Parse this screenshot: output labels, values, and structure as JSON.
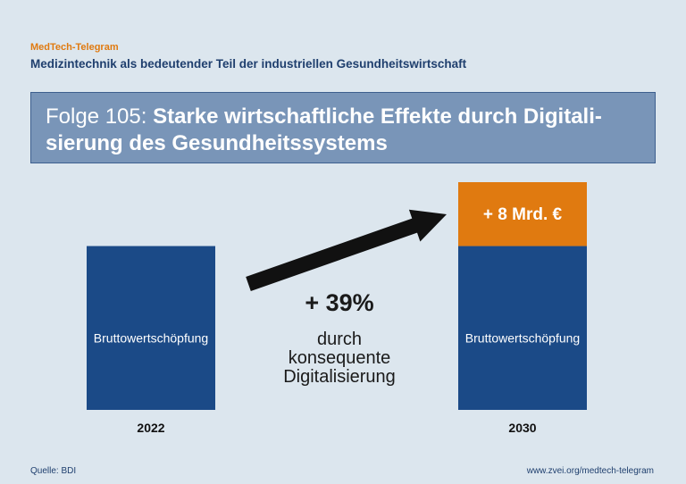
{
  "header": {
    "brand": "MedTech-Telegram",
    "subtitle": "Medizintechnik als bedeutender Teil der industriellen Gesundheitswirtschaft"
  },
  "banner": {
    "prefix": "Folge 105:",
    "title": "Starke wirtschaftliche Effekte durch Digitali-sierung des Gesundheitssystems"
  },
  "chart_data": {
    "type": "bar",
    "categories": [
      "2022",
      "2030"
    ],
    "series": [
      {
        "values": [
          100,
          100
        ]
      },
      {
        "values": [
          0,
          39
        ]
      }
    ],
    "bar_labels": [
      "Bruttowertschöpfung",
      "Bruttowertschöpfung"
    ],
    "increase_label": "+ 8 Mrd. €",
    "growth_label": "+ 39%",
    "growth_note": [
      "durch",
      "konsequente",
      "Digitalisierung"
    ],
    "ylim": [
      0,
      139
    ],
    "colors": {
      "base": "#1b4a87",
      "increase": "#e07a10",
      "arrow": "#111111"
    }
  },
  "footer": {
    "source": "Quelle: BDI",
    "url": "www.zvei.org/medtech-telegram"
  }
}
